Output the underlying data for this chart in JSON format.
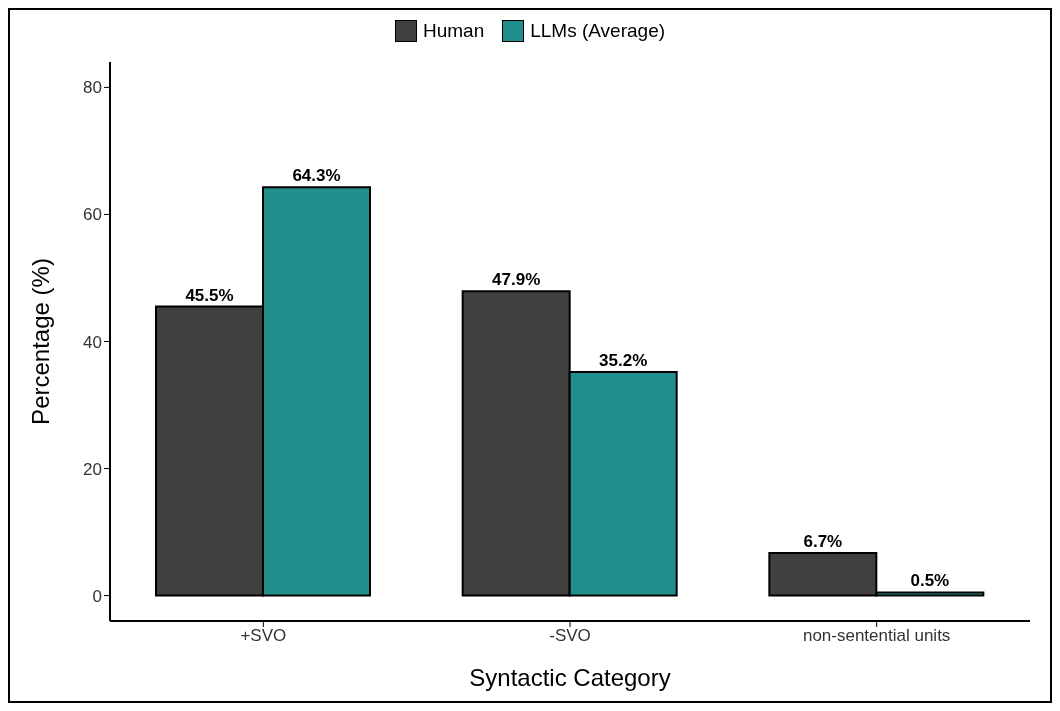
{
  "chart_data": {
    "type": "bar",
    "xlabel": "Syntactic Category",
    "ylabel": "Percentage (%)",
    "categories": [
      "+SVO",
      "-SVO",
      "non-sentential units"
    ],
    "series": [
      {
        "name": "Human",
        "color": "#404040",
        "values": [
          45.5,
          47.9,
          6.7
        ],
        "value_labels": [
          "45.5%",
          "47.9%",
          "6.7%"
        ]
      },
      {
        "name": "LLMs (Average)",
        "color": "#21908c",
        "values": [
          64.3,
          35.2,
          0.5
        ],
        "value_labels": [
          "64.3%",
          "35.2%",
          "0.5%"
        ]
      }
    ],
    "ylim": [
      -4,
      84
    ],
    "yticks": [
      0,
      20,
      40,
      60,
      80
    ],
    "grid": false,
    "legend": "top"
  }
}
